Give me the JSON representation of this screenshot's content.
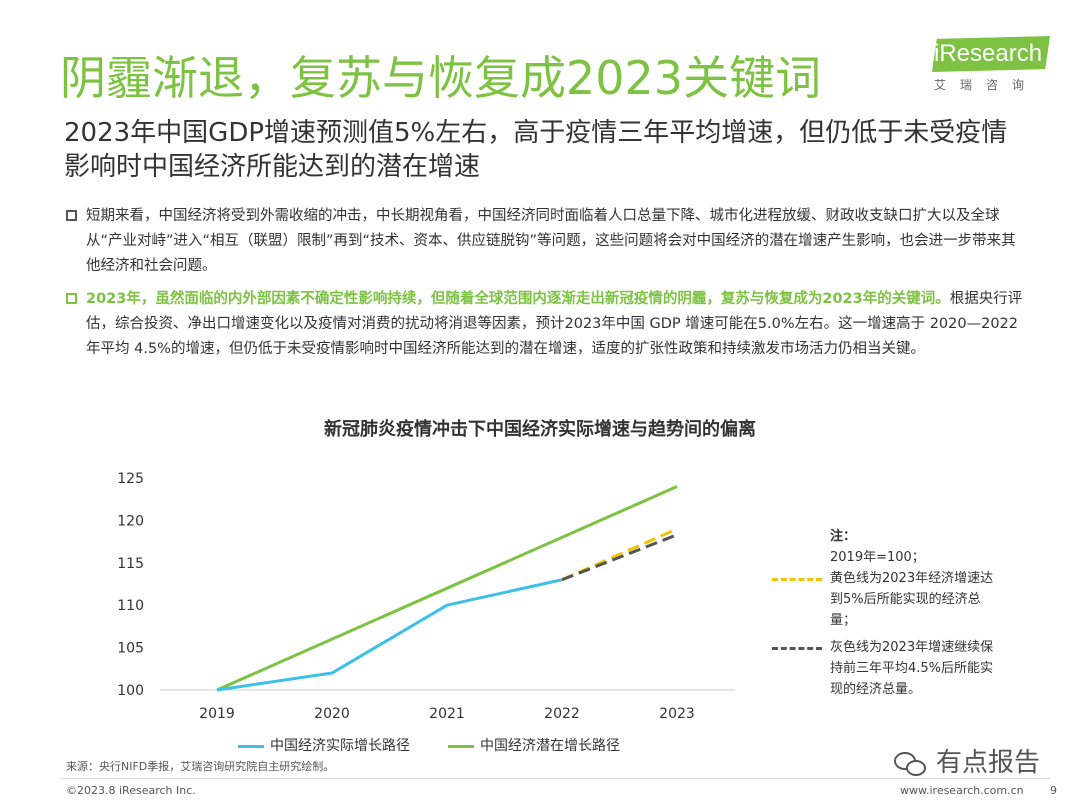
{
  "header": {
    "title": "阴霾渐退，复苏与恢复成2023关键词",
    "logo_text": "iResearch",
    "logo_sub": "艾瑞咨询",
    "subtitle": "2023年中国GDP增速预测值5%左右，高于疫情三年平均增速，但仍低于未受疫情影响时中国经济所能达到的潜在增速"
  },
  "body": {
    "para1": "短期来看，中国经济将受到外需收缩的冲击，中长期视角看，中国经济同时面临着人口总量下降、城市化进程放缓、财政收支缺口扩大以及全球从“产业对峙”进入“相互（联盟）限制”再到“技术、资本、供应链脱钩”等问题，这些问题将会对中国经济的潜在增速产生影响，也会进一步带来其他经济和社会问题。",
    "para2_highlight": "2023年，虽然面临的内外部因素不确定性影响持续，但随着全球范围内逐渐走出新冠疫情的阴霾，复苏与恢复成为2023年的关键词。",
    "para2_rest": "根据央行评估，综合投资、净出口增速变化以及疫情对消费的扰动将消退等因素，预计2023年中国 GDP 增速可能在5.0%左右。这一增速高于 2020—2022 年平均 4.5%的增速，但仍低于未受疫情影响时中国经济所能达到的潜在增速，适度的扩张性政策和持续激发市场活力仍相当关键。"
  },
  "note": {
    "heading": "注：",
    "line1": "2019年=100；",
    "yellow": "黄色线为2023年经济增速达到5%后所能实现的经济总量；",
    "gray": "灰色线为2023年增速继续保持前三年平均4.5%后所能实现的经济总量。"
  },
  "chart_data": {
    "type": "line",
    "title": "新冠肺炎疫情冲击下中国经济实际增速与趋势间的偏离",
    "categories": [
      "2019",
      "2020",
      "2021",
      "2022",
      "2023"
    ],
    "ylim": [
      100,
      125
    ],
    "yticks": [
      100,
      105,
      110,
      115,
      120,
      125
    ],
    "series": [
      {
        "name": "中国经济实际增长路径",
        "color": "#3cc0e8",
        "style": "solid",
        "x": [
          "2019",
          "2020",
          "2021",
          "2022"
        ],
        "values": [
          100,
          102,
          110,
          113
        ]
      },
      {
        "name": "中国经济潜在增长路径",
        "color": "#7dc242",
        "style": "solid",
        "x": [
          "2019",
          "2023"
        ],
        "values": [
          100,
          124
        ]
      },
      {
        "name": "2023年增速5%",
        "color": "#f5c400",
        "style": "dashed",
        "x": [
          "2022",
          "2023"
        ],
        "values": [
          113,
          119
        ]
      },
      {
        "name": "2023年增速4.5%",
        "color": "#555555",
        "style": "dashed",
        "x": [
          "2022",
          "2023"
        ],
        "values": [
          113,
          118.3
        ]
      }
    ],
    "legend": [
      "中国经济实际增长路径",
      "中国经济潜在增长路径"
    ]
  },
  "footer": {
    "source": "来源：央行NIFD季报，艾瑞咨询研究院自主研究绘制。",
    "copyright": "©2023.8 iResearch Inc.",
    "url": "www.iresearch.com.cn",
    "page": "9",
    "watermark": "有点报告"
  }
}
